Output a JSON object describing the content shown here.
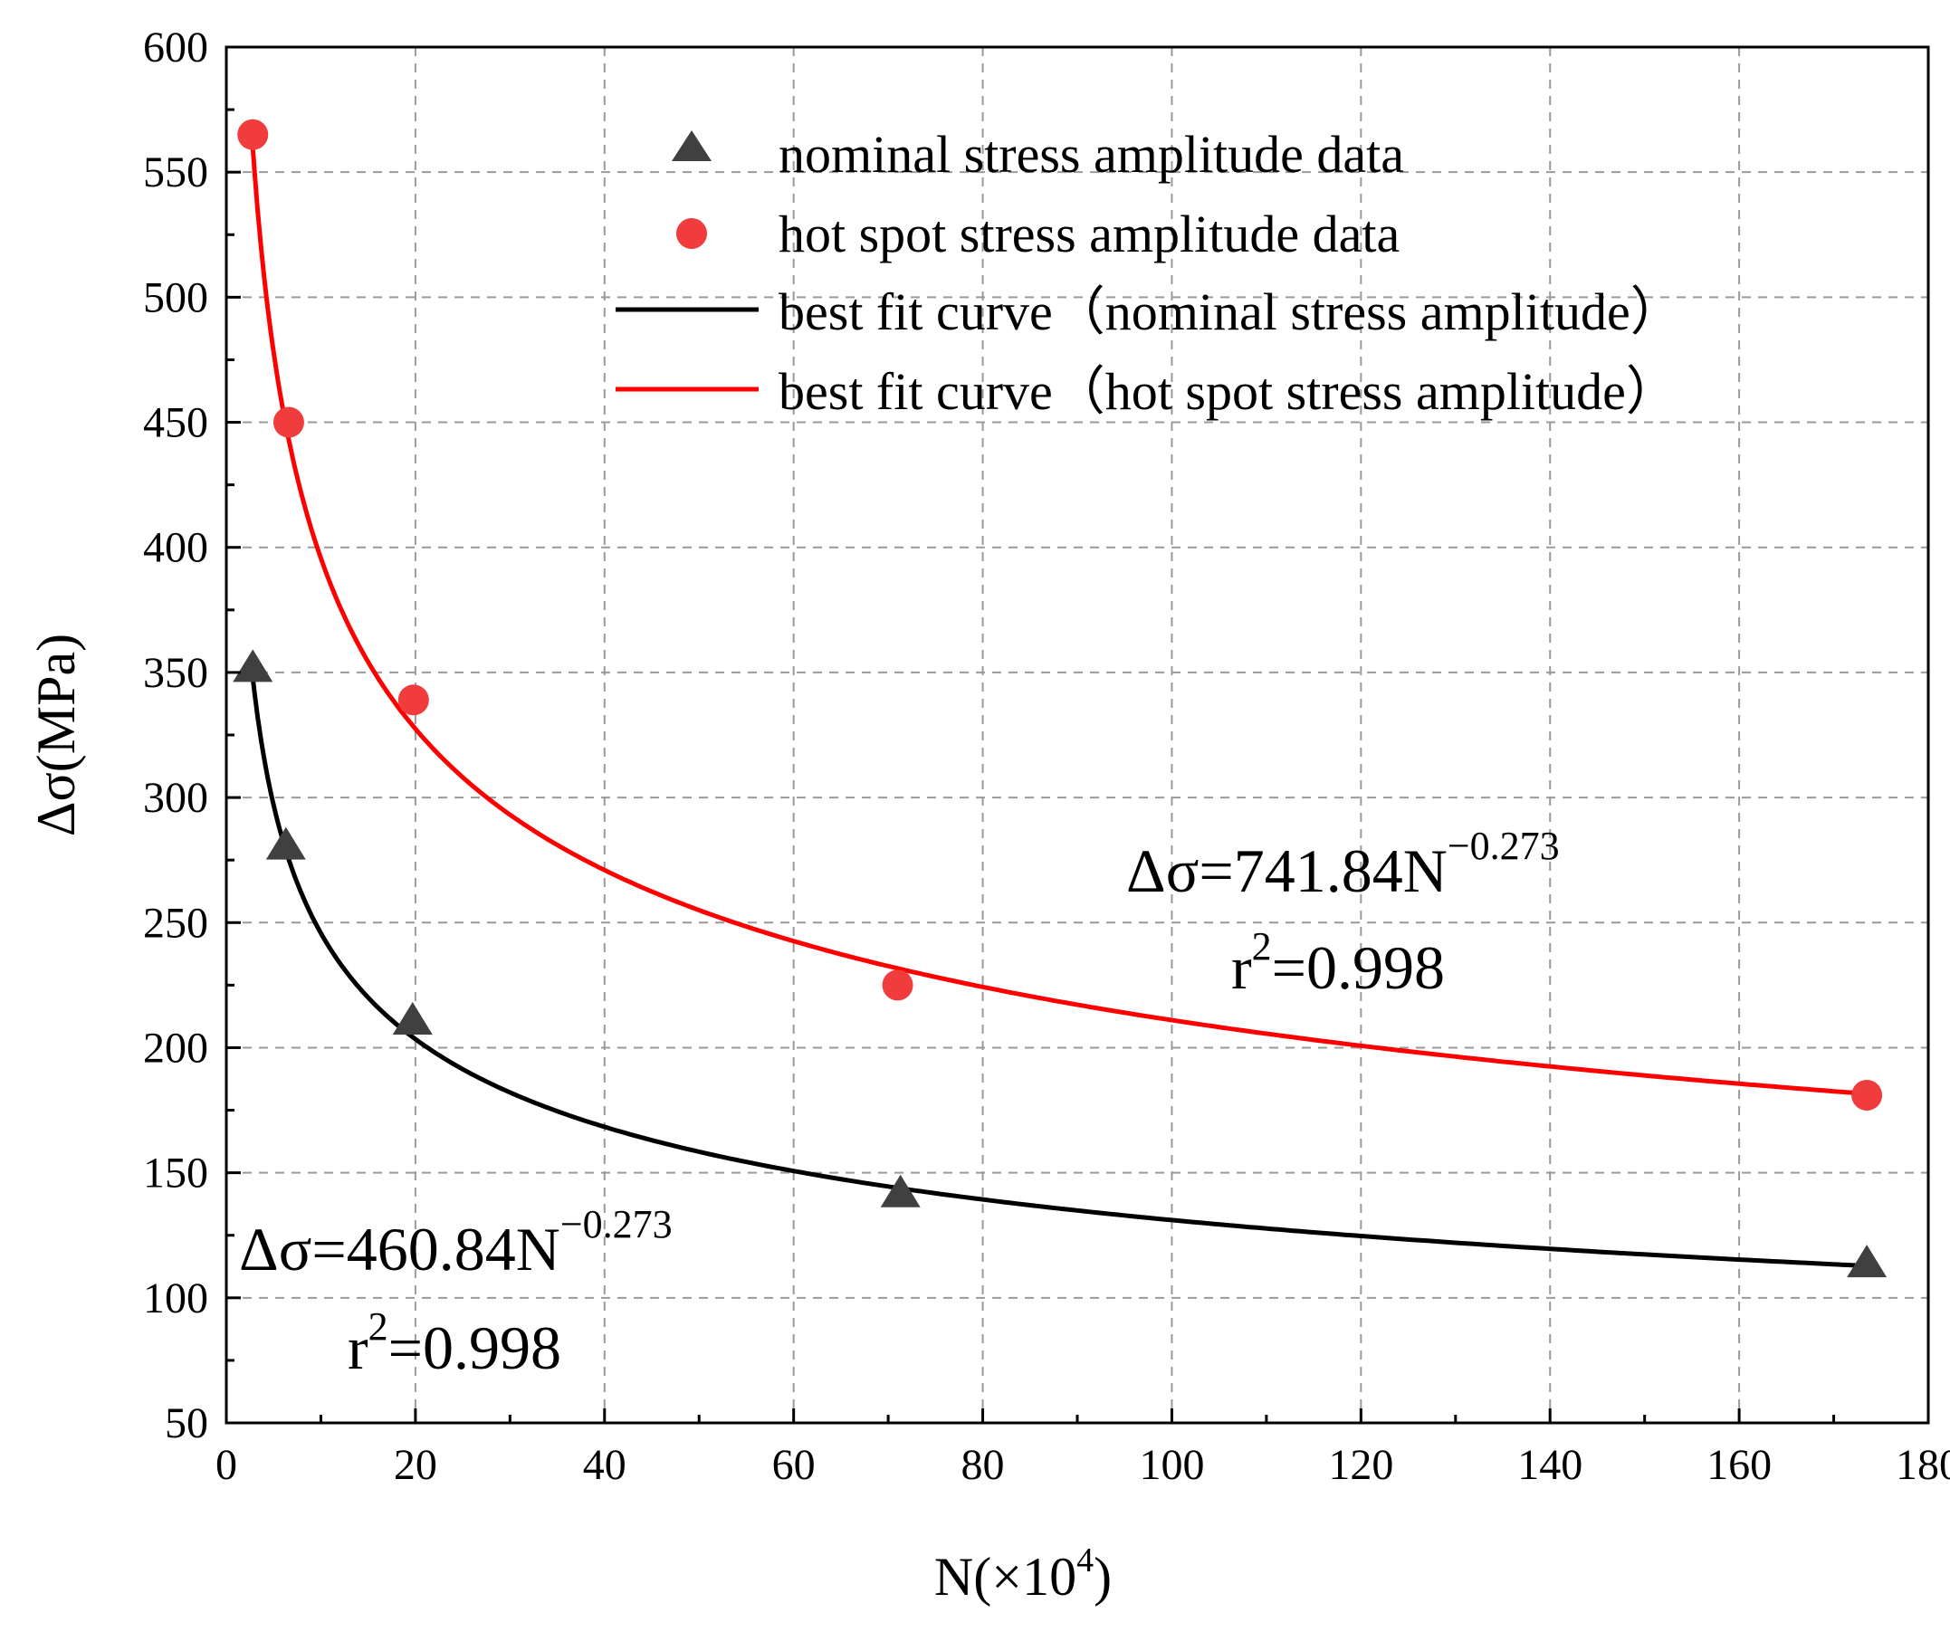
{
  "chart_data": {
    "type": "scatter",
    "xlabel": "N(×10⁴)",
    "xlabel_parts": {
      "main": "N(×10",
      "sup": "4",
      "close": ")"
    },
    "ylabel": "Δσ(MPa)",
    "xlim": [
      0,
      180
    ],
    "ylim": [
      50,
      600
    ],
    "x_ticks": [
      0,
      20,
      40,
      60,
      80,
      100,
      120,
      140,
      160,
      180
    ],
    "y_ticks": [
      50,
      100,
      150,
      200,
      250,
      300,
      350,
      400,
      450,
      500,
      550,
      600
    ],
    "grid": true,
    "legend_position": "top-right",
    "series": [
      {
        "name": "nominal stress amplitude data",
        "kind": "scatter",
        "marker": "triangle",
        "color": "#404040",
        "x": [
          2.8,
          6.3,
          19.7,
          71.3,
          173.5
        ],
        "y": [
          352,
          281,
          211,
          142,
          114
        ]
      },
      {
        "name": "hot spot stress amplitude data",
        "kind": "scatter",
        "marker": "circle",
        "color": "#f03c3c",
        "x": [
          2.8,
          6.6,
          19.8,
          71.0,
          173.5
        ],
        "y": [
          565,
          450,
          339,
          225,
          181
        ]
      },
      {
        "name": "best fit curve（nominal stress amplitude）",
        "kind": "line",
        "color": "#000000",
        "fit": {
          "a": 460.84,
          "b": -0.273,
          "x_range": [
            2.8,
            173.5
          ]
        }
      },
      {
        "name": "best fit curve（hot spot stress amplitude）",
        "kind": "line",
        "color": "#ff0000",
        "fit": {
          "a": 741.84,
          "b": -0.273,
          "x_range": [
            2.8,
            173.5
          ]
        }
      }
    ],
    "annotations": [
      {
        "main": "Δσ=741.84N",
        "exp": "−0.273",
        "r2_main": "r",
        "r2_sup": "2",
        "r2_rest": "=0.998"
      },
      {
        "main": "Δσ=460.84N",
        "exp": "−0.273",
        "r2_main": "r",
        "r2_sup": "2",
        "r2_rest": "=0.998"
      }
    ]
  }
}
